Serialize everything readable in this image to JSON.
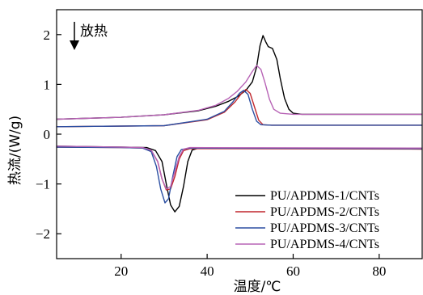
{
  "chart_data": {
    "type": "line",
    "title": "",
    "xlabel": "温度/℃",
    "ylabel": "热流/(W/g)",
    "xlim": [
      5,
      90
    ],
    "ylim": [
      -2.5,
      2.5
    ],
    "x_ticks": [
      20,
      40,
      60,
      80
    ],
    "y_ticks": [
      -2,
      -1,
      0,
      1,
      2
    ],
    "x_tick_labels": [
      "20",
      "40",
      "60",
      "80"
    ],
    "y_tick_labels": [
      "−2",
      "−1",
      "0",
      "1",
      "2"
    ],
    "grid": false,
    "legend_position": "lower-right",
    "annotation": "放热",
    "series": [
      {
        "name": "PU/APDMS-1/CNTs",
        "color": "#000000",
        "heating": [
          [
            5,
            0.3
          ],
          [
            20,
            0.34
          ],
          [
            30,
            0.39
          ],
          [
            38,
            0.47
          ],
          [
            42,
            0.56
          ],
          [
            45,
            0.66
          ],
          [
            47,
            0.75
          ],
          [
            49,
            0.88
          ],
          [
            50.5,
            1.05
          ],
          [
            51.5,
            1.35
          ],
          [
            52.3,
            1.78
          ],
          [
            53,
            1.98
          ],
          [
            53.6,
            1.86
          ],
          [
            54.2,
            1.76
          ],
          [
            55.2,
            1.72
          ],
          [
            56.2,
            1.5
          ],
          [
            57,
            1.12
          ],
          [
            58,
            0.72
          ],
          [
            59,
            0.5
          ],
          [
            60,
            0.42
          ],
          [
            62,
            0.4
          ],
          [
            70,
            0.4
          ],
          [
            90,
            0.4
          ]
        ],
        "cooling": [
          [
            5,
            -0.24
          ],
          [
            20,
            -0.26
          ],
          [
            26,
            -0.27
          ],
          [
            28,
            -0.33
          ],
          [
            29.5,
            -0.55
          ],
          [
            30.5,
            -1.0
          ],
          [
            31.5,
            -1.42
          ],
          [
            32.5,
            -1.56
          ],
          [
            33.5,
            -1.45
          ],
          [
            34.5,
            -1.05
          ],
          [
            35.5,
            -0.55
          ],
          [
            36.5,
            -0.32
          ],
          [
            38,
            -0.28
          ],
          [
            60,
            -0.28
          ],
          [
            90,
            -0.28
          ]
        ]
      },
      {
        "name": "PU/APDMS-2/CNTs",
        "color": "#c0272d",
        "heating": [
          [
            5,
            0.15
          ],
          [
            30,
            0.17
          ],
          [
            40,
            0.29
          ],
          [
            44,
            0.44
          ],
          [
            46.5,
            0.65
          ],
          [
            48,
            0.82
          ],
          [
            49,
            0.9
          ],
          [
            50,
            0.82
          ],
          [
            51,
            0.55
          ],
          [
            52,
            0.28
          ],
          [
            53,
            0.19
          ],
          [
            55,
            0.18
          ],
          [
            90,
            0.18
          ]
        ],
        "cooling": [
          [
            5,
            -0.26
          ],
          [
            20,
            -0.27
          ],
          [
            25,
            -0.28
          ],
          [
            27,
            -0.33
          ],
          [
            28.5,
            -0.55
          ],
          [
            29.5,
            -0.9
          ],
          [
            30.5,
            -1.12
          ],
          [
            31.5,
            -1.1
          ],
          [
            32.5,
            -0.85
          ],
          [
            33.5,
            -0.5
          ],
          [
            34.5,
            -0.33
          ],
          [
            36,
            -0.29
          ],
          [
            90,
            -0.3
          ]
        ]
      },
      {
        "name": "PU/APDMS-3/CNTs",
        "color": "#2b4fa2",
        "heating": [
          [
            5,
            0.15
          ],
          [
            30,
            0.17
          ],
          [
            40,
            0.3
          ],
          [
            44,
            0.46
          ],
          [
            46,
            0.65
          ],
          [
            47.5,
            0.82
          ],
          [
            48.5,
            0.88
          ],
          [
            49.5,
            0.8
          ],
          [
            50.5,
            0.5
          ],
          [
            51.5,
            0.26
          ],
          [
            52.5,
            0.19
          ],
          [
            55,
            0.18
          ],
          [
            90,
            0.18
          ]
        ],
        "cooling": [
          [
            5,
            -0.26
          ],
          [
            20,
            -0.27
          ],
          [
            25,
            -0.28
          ],
          [
            27,
            -0.35
          ],
          [
            28.2,
            -0.65
          ],
          [
            29.2,
            -1.1
          ],
          [
            30.2,
            -1.38
          ],
          [
            31,
            -1.3
          ],
          [
            32,
            -0.85
          ],
          [
            33,
            -0.45
          ],
          [
            34,
            -0.31
          ],
          [
            36,
            -0.28
          ],
          [
            90,
            -0.29
          ]
        ]
      },
      {
        "name": "PU/APDMS-4/CNTs",
        "color": "#b763b5",
        "heating": [
          [
            5,
            0.3
          ],
          [
            20,
            0.34
          ],
          [
            30,
            0.39
          ],
          [
            38,
            0.48
          ],
          [
            42,
            0.58
          ],
          [
            45,
            0.72
          ],
          [
            47,
            0.86
          ],
          [
            49,
            1.05
          ],
          [
            50.5,
            1.26
          ],
          [
            51.5,
            1.38
          ],
          [
            52.5,
            1.3
          ],
          [
            53.5,
            1.02
          ],
          [
            54.5,
            0.7
          ],
          [
            55.5,
            0.5
          ],
          [
            57,
            0.42
          ],
          [
            60,
            0.4
          ],
          [
            90,
            0.4
          ]
        ],
        "cooling": [
          [
            5,
            -0.24
          ],
          [
            20,
            -0.26
          ],
          [
            25,
            -0.27
          ],
          [
            27,
            -0.32
          ],
          [
            28.5,
            -0.55
          ],
          [
            29.5,
            -0.9
          ],
          [
            30.5,
            -1.1
          ],
          [
            31.5,
            -1.05
          ],
          [
            32.5,
            -0.75
          ],
          [
            33.5,
            -0.45
          ],
          [
            34.5,
            -0.3
          ],
          [
            36,
            -0.27
          ],
          [
            90,
            -0.28
          ]
        ]
      }
    ]
  }
}
